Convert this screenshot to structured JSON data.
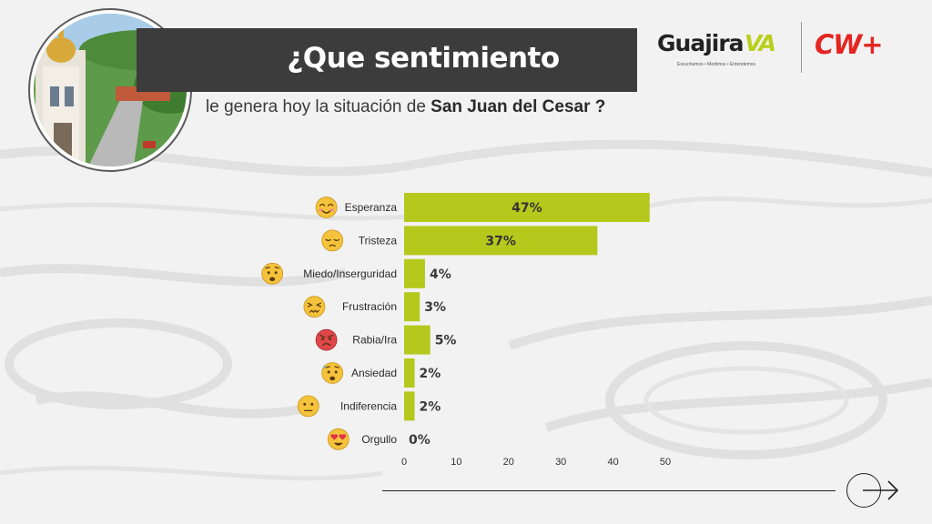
{
  "header": {
    "title": "¿Que sentimiento",
    "subtitle_prefix": "le genera hoy la situación de ",
    "subtitle_bold": "San Juan del Cesar ?"
  },
  "logos": {
    "guajira_word": "Guajira",
    "guajira_va": "VA",
    "guajira_tagline": "Escuchamos • Medimos • Entendemos",
    "cw": "CW+"
  },
  "colors": {
    "bar": "#b5c91c",
    "banner": "#3c3c3c",
    "cw_red": "#e52521"
  },
  "chart_data": {
    "type": "bar",
    "orientation": "horizontal",
    "categories": [
      "Esperanza",
      "Tristeza",
      "Miedo/Inserguridad",
      "Frustración",
      "Rabia/Ira",
      "Ansiedad",
      "Indiferencia",
      "Orgullo"
    ],
    "values": [
      47,
      37,
      4,
      3,
      5,
      2,
      2,
      0
    ],
    "value_labels": [
      "47%",
      "37%",
      "4%",
      "3%",
      "5%",
      "2%",
      "2%",
      "0%"
    ],
    "icons": [
      "smiling-face-icon",
      "pensive-face-icon",
      "worried-face-icon",
      "confounded-face-icon",
      "angry-face-icon",
      "anxious-sweat-face-icon",
      "neutral-face-icon",
      "heart-eyes-face-icon"
    ],
    "xticks": [
      0,
      10,
      20,
      30,
      40,
      50
    ],
    "xlim": [
      0,
      50
    ],
    "grid": false,
    "legend": "none"
  }
}
